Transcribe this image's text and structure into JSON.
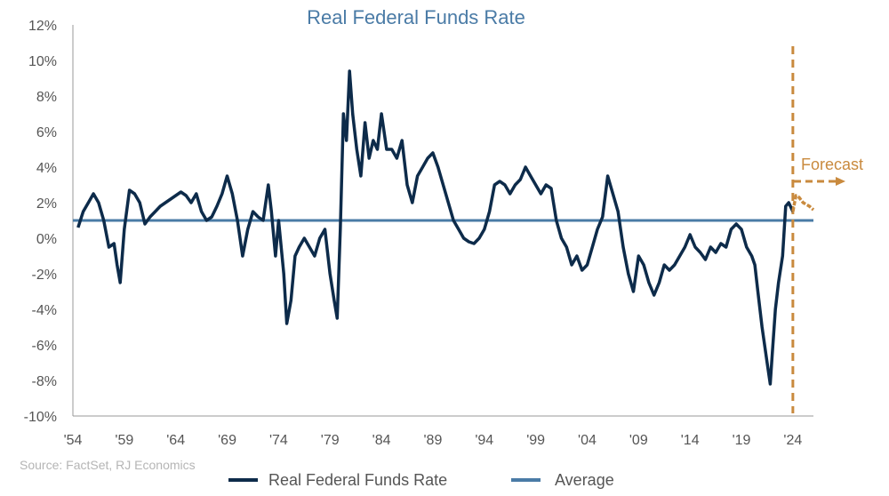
{
  "chart_data": {
    "type": "line",
    "title": "Real Federal Funds Rate",
    "source": "Source: FactSet, RJ Economics",
    "x_tick_labels": [
      "'54",
      "'59",
      "'64",
      "'69",
      "'74",
      "'79",
      "'84",
      "'89",
      "'94",
      "'99",
      "'04",
      "'09",
      "'14",
      "'19",
      "'24"
    ],
    "x_ticks": [
      1954,
      1959,
      1964,
      1969,
      1974,
      1979,
      1984,
      1989,
      1994,
      1999,
      2004,
      2009,
      2014,
      2019,
      2024
    ],
    "xlim": [
      1954,
      2026
    ],
    "y_tick_labels": [
      "12%",
      "10%",
      "8%",
      "6%",
      "4%",
      "2%",
      "0%",
      "-2%",
      "-4%",
      "-6%",
      "-8%",
      "-10%"
    ],
    "y_ticks": [
      12,
      10,
      8,
      6,
      4,
      2,
      0,
      -2,
      -4,
      -6,
      -8,
      -10
    ],
    "ylim": [
      -10,
      12
    ],
    "grid": false,
    "legend_position": "bottom-center",
    "annotation": "Forecast",
    "forecast_start_x": 2024.0,
    "series": [
      {
        "name": "Real Federal Funds Rate",
        "color": "#0d2b4a",
        "x": [
          1954.5,
          1955.0,
          1955.5,
          1956.0,
          1956.5,
          1957.0,
          1957.5,
          1958.0,
          1958.3,
          1958.6,
          1959.0,
          1959.5,
          1960.0,
          1960.5,
          1961.0,
          1961.5,
          1962.0,
          1962.5,
          1963.0,
          1963.5,
          1964.0,
          1964.5,
          1965.0,
          1965.5,
          1966.0,
          1966.5,
          1967.0,
          1967.5,
          1968.0,
          1968.5,
          1969.0,
          1969.5,
          1970.0,
          1970.5,
          1971.0,
          1971.5,
          1972.0,
          1972.5,
          1973.0,
          1973.3,
          1973.7,
          1974.0,
          1974.5,
          1974.8,
          1975.2,
          1975.6,
          1976.0,
          1976.5,
          1977.0,
          1977.5,
          1978.0,
          1978.5,
          1979.0,
          1979.4,
          1979.7,
          1980.0,
          1980.3,
          1980.6,
          1980.9,
          1981.2,
          1981.6,
          1982.0,
          1982.4,
          1982.8,
          1983.2,
          1983.6,
          1984.0,
          1984.5,
          1985.0,
          1985.5,
          1986.0,
          1986.5,
          1987.0,
          1987.5,
          1988.0,
          1988.5,
          1989.0,
          1989.5,
          1990.0,
          1990.5,
          1991.0,
          1991.5,
          1992.0,
          1992.5,
          1993.0,
          1993.5,
          1994.0,
          1994.5,
          1995.0,
          1995.5,
          1996.0,
          1996.5,
          1997.0,
          1997.5,
          1998.0,
          1998.5,
          1999.0,
          1999.5,
          2000.0,
          2000.5,
          2001.0,
          2001.5,
          2002.0,
          2002.5,
          2003.0,
          2003.5,
          2004.0,
          2004.5,
          2005.0,
          2005.5,
          2006.0,
          2006.5,
          2007.0,
          2007.5,
          2008.0,
          2008.5,
          2009.0,
          2009.5,
          2010.0,
          2010.5,
          2011.0,
          2011.5,
          2012.0,
          2012.5,
          2013.0,
          2013.5,
          2014.0,
          2014.5,
          2015.0,
          2015.5,
          2016.0,
          2016.5,
          2017.0,
          2017.5,
          2018.0,
          2018.5,
          2019.0,
          2019.5,
          2020.0,
          2020.3,
          2020.6,
          2021.0,
          2021.5,
          2021.8,
          2022.0,
          2022.3,
          2022.6,
          2023.0,
          2023.3,
          2023.6,
          2024.0
        ],
        "values": [
          0.6,
          1.5,
          2.0,
          2.5,
          2.0,
          1.0,
          -0.5,
          -0.3,
          -1.5,
          -2.5,
          0.5,
          2.7,
          2.5,
          2.0,
          0.8,
          1.2,
          1.5,
          1.8,
          2.0,
          2.2,
          2.4,
          2.6,
          2.4,
          2.0,
          2.5,
          1.5,
          1.0,
          1.2,
          1.8,
          2.5,
          3.5,
          2.5,
          1.0,
          -1.0,
          0.5,
          1.5,
          1.2,
          1.0,
          3.0,
          1.5,
          -1.0,
          1.0,
          -2.0,
          -4.8,
          -3.5,
          -1.0,
          -0.5,
          0.0,
          -0.5,
          -1.0,
          0.0,
          0.5,
          -2.0,
          -3.5,
          -4.5,
          0.5,
          7.0,
          5.5,
          9.4,
          7.0,
          5.0,
          3.5,
          6.5,
          4.5,
          5.5,
          5.0,
          7.0,
          5.0,
          5.0,
          4.5,
          5.5,
          3.0,
          2.0,
          3.5,
          4.0,
          4.5,
          4.8,
          4.0,
          3.0,
          2.0,
          1.0,
          0.5,
          0.0,
          -0.2,
          -0.3,
          0.0,
          0.5,
          1.5,
          3.0,
          3.2,
          3.0,
          2.5,
          3.0,
          3.3,
          4.0,
          3.5,
          3.0,
          2.5,
          3.0,
          2.8,
          1.0,
          0.0,
          -0.5,
          -1.5,
          -1.0,
          -1.8,
          -1.5,
          -0.5,
          0.5,
          1.2,
          3.5,
          2.5,
          1.5,
          -0.5,
          -2.0,
          -3.0,
          -1.0,
          -1.5,
          -2.5,
          -3.2,
          -2.5,
          -1.5,
          -1.8,
          -1.5,
          -1.0,
          -0.5,
          0.2,
          -0.5,
          -0.8,
          -1.2,
          -0.5,
          -0.8,
          -0.3,
          -0.5,
          0.5,
          0.8,
          0.5,
          -0.5,
          -1.0,
          -1.5,
          -3.0,
          -5.0,
          -7.0,
          -8.2,
          -6.5,
          -4.0,
          -2.5,
          -1.0,
          1.8,
          2.0,
          1.5
        ]
      },
      {
        "name": "Real Federal Funds Rate (forecast)",
        "color": "#c98a3e",
        "x": [
          2024.0,
          2024.3,
          2024.6,
          2025.0,
          2025.3,
          2025.6,
          2026.0
        ],
        "values": [
          1.5,
          2.4,
          2.3,
          2.0,
          1.9,
          1.8,
          1.6
        ]
      },
      {
        "name": "Average",
        "color": "#4a7ba6",
        "x": [
          1954,
          2026
        ],
        "values": [
          1.0,
          1.0
        ]
      }
    ],
    "legend": [
      {
        "label": "Real Federal Funds Rate",
        "color": "#0d2b4a"
      },
      {
        "label": "Average",
        "color": "#4a7ba6"
      }
    ]
  }
}
